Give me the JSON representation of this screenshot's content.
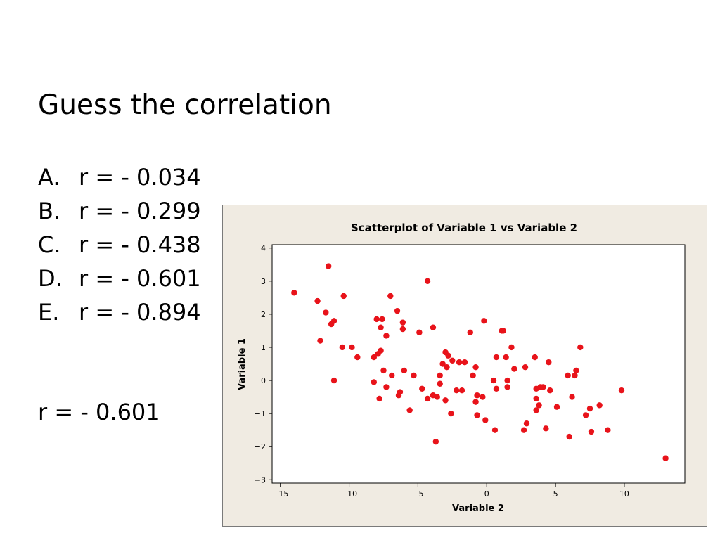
{
  "slide": {
    "title": "Guess the correlation",
    "choices": [
      {
        "letter": "A.",
        "text": "r = - 0.034"
      },
      {
        "letter": "B.",
        "text": "r = - 0.299"
      },
      {
        "letter": "C.",
        "text": "r = - 0.438"
      },
      {
        "letter": "D.",
        "text": "r = - 0.601"
      },
      {
        "letter": "E.",
        "text": "r = - 0.894"
      }
    ],
    "answer": "r = - 0.601"
  },
  "colors": {
    "points": "#e8131a",
    "panel_background": "#f0ebe2",
    "plot_background": "#ffffff"
  },
  "chart_data": {
    "type": "scatter",
    "title": "Scatterplot of Variable 1 vs Variable 2",
    "xlabel": "Variable 2",
    "ylabel": "Variable 1",
    "xlim": [
      -15.6,
      14.4
    ],
    "ylim": [
      -3.1,
      4.1
    ],
    "xticks": [
      -15,
      -10,
      -5,
      0,
      5,
      10
    ],
    "yticks": [
      -3,
      -2,
      -1,
      0,
      1,
      2,
      3,
      4
    ],
    "grid": false,
    "legend": "none",
    "points": [
      [
        -14,
        2.65
      ],
      [
        -12.3,
        2.4
      ],
      [
        -12.1,
        1.2
      ],
      [
        -11.7,
        2.05
      ],
      [
        -11.5,
        3.45
      ],
      [
        -11.3,
        1.7
      ],
      [
        -11.1,
        1.8
      ],
      [
        -11.1,
        0
      ],
      [
        -10.5,
        1
      ],
      [
        -10.4,
        2.55
      ],
      [
        -9.8,
        1
      ],
      [
        -9.4,
        0.7
      ],
      [
        -8.2,
        -0.05
      ],
      [
        -8.2,
        0.7
      ],
      [
        -8,
        1.85
      ],
      [
        -7.9,
        0.8
      ],
      [
        -7.8,
        -0.55
      ],
      [
        -7.7,
        0.9
      ],
      [
        -7.7,
        1.6
      ],
      [
        -7.6,
        1.85
      ],
      [
        -7.5,
        0.3
      ],
      [
        -7.3,
        1.35
      ],
      [
        -7.3,
        -0.2
      ],
      [
        -7,
        2.55
      ],
      [
        -6.9,
        0.15
      ],
      [
        -6.5,
        2.1
      ],
      [
        -6.4,
        -0.45
      ],
      [
        -6.3,
        -0.35
      ],
      [
        -6.1,
        1.75
      ],
      [
        -6.1,
        1.55
      ],
      [
        -6,
        0.3
      ],
      [
        -5.6,
        -0.9
      ],
      [
        -5.3,
        0.15
      ],
      [
        -4.9,
        1.45
      ],
      [
        -4.7,
        -0.25
      ],
      [
        -4.3,
        3
      ],
      [
        -4.3,
        -0.55
      ],
      [
        -3.9,
        1.6
      ],
      [
        -3.9,
        -0.45
      ],
      [
        -3.7,
        -1.85
      ],
      [
        -3.6,
        -0.5
      ],
      [
        -3.4,
        0.15
      ],
      [
        -3.4,
        -0.1
      ],
      [
        -3.2,
        0.5
      ],
      [
        -3,
        0.85
      ],
      [
        -3,
        -0.6
      ],
      [
        -2.9,
        0.4
      ],
      [
        -2.8,
        0.75
      ],
      [
        -2.6,
        -1
      ],
      [
        -2.5,
        0.6
      ],
      [
        -2.2,
        -0.3
      ],
      [
        -2,
        0.55
      ],
      [
        -1.8,
        -0.3
      ],
      [
        -1.6,
        0.55
      ],
      [
        -1.2,
        1.45
      ],
      [
        -1,
        0.15
      ],
      [
        -0.8,
        0.4
      ],
      [
        -0.8,
        -0.65
      ],
      [
        -0.7,
        -0.45
      ],
      [
        -0.7,
        -1.05
      ],
      [
        -0.3,
        -0.5
      ],
      [
        -0.2,
        1.8
      ],
      [
        -0.1,
        -1.2
      ],
      [
        0.5,
        0
      ],
      [
        0.6,
        -1.5
      ],
      [
        0.7,
        -0.25
      ],
      [
        0.7,
        0.7
      ],
      [
        1.1,
        1.5
      ],
      [
        1.2,
        1.5
      ],
      [
        1.4,
        0.7
      ],
      [
        1.5,
        0
      ],
      [
        1.5,
        -0.2
      ],
      [
        1.8,
        1
      ],
      [
        2,
        0.35
      ],
      [
        2.7,
        -1.5
      ],
      [
        2.8,
        0.4
      ],
      [
        2.9,
        -1.3
      ],
      [
        3.5,
        0.7
      ],
      [
        3.6,
        -0.25
      ],
      [
        3.6,
        -0.55
      ],
      [
        3.6,
        -0.9
      ],
      [
        3.8,
        -0.75
      ],
      [
        3.9,
        -0.2
      ],
      [
        4.1,
        -0.2
      ],
      [
        4.3,
        -1.45
      ],
      [
        4.5,
        0.55
      ],
      [
        4.6,
        -0.3
      ],
      [
        5.1,
        -0.8
      ],
      [
        5.9,
        0.15
      ],
      [
        6,
        -1.7
      ],
      [
        6.2,
        -0.5
      ],
      [
        6.4,
        0.15
      ],
      [
        6.5,
        0.3
      ],
      [
        6.8,
        1
      ],
      [
        7.2,
        -1.05
      ],
      [
        7.5,
        -0.85
      ],
      [
        7.6,
        -1.55
      ],
      [
        8.2,
        -0.75
      ],
      [
        8.8,
        -1.5
      ],
      [
        9.8,
        -0.3
      ],
      [
        13,
        -2.35
      ]
    ]
  }
}
